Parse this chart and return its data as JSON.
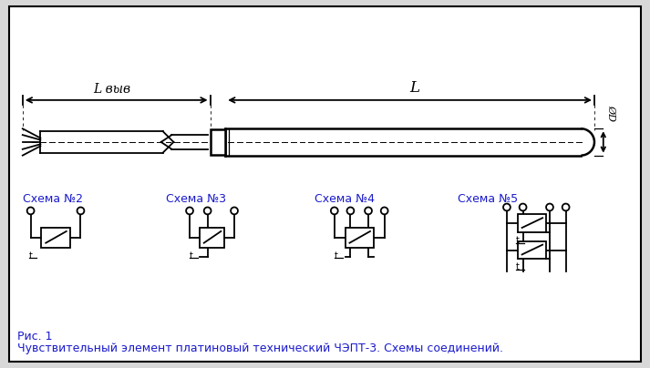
{
  "bg_color": "#d8d8d8",
  "inner_bg": "#ffffff",
  "line_color": "#000000",
  "text_blue": "#1a1acc",
  "schema_titles": [
    "Схема №2",
    "Схема №3",
    "Схема №4",
    "Схема №5"
  ],
  "caption_line1": "Рис. 1",
  "caption_line2": "Чувствительный элемент платиновый технический ЧЭПТ-3. Схемы соединений.",
  "dim_Lvyv": "L выв",
  "dim_L": "L",
  "dim_D": "ØD"
}
